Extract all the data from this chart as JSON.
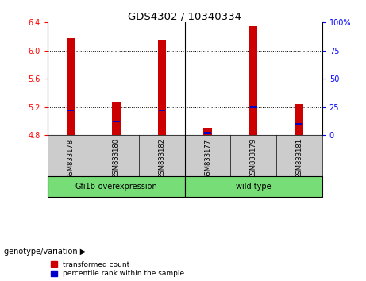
{
  "title": "GDS4302 / 10340334",
  "samples": [
    "GSM833178",
    "GSM833180",
    "GSM833182",
    "GSM833177",
    "GSM833179",
    "GSM833181"
  ],
  "red_values": [
    6.18,
    5.28,
    6.15,
    4.9,
    6.35,
    5.24
  ],
  "blue_values_pct": [
    22,
    12,
    22,
    2,
    25,
    10
  ],
  "y_min": 4.8,
  "y_max": 6.4,
  "y_ticks": [
    4.8,
    5.2,
    5.6,
    6.0,
    6.4
  ],
  "right_y_ticks": [
    0,
    25,
    50,
    75,
    100
  ],
  "right_y_tick_labels": [
    "0",
    "25",
    "50",
    "75",
    "100%"
  ],
  "dotted_lines": [
    5.2,
    5.6,
    6.0
  ],
  "group1_label": "Gfi1b-overexpression",
  "group2_label": "wild type",
  "group_color": "#77DD77",
  "sample_bg_color": "#cccccc",
  "bar_width": 0.18,
  "red_color": "#cc0000",
  "blue_color": "#0000cc",
  "legend_red_label": "transformed count",
  "legend_blue_label": "percentile rank within the sample",
  "genotype_label": "genotype/variation",
  "group1_indices": [
    0,
    1,
    2
  ],
  "group2_indices": [
    3,
    4,
    5
  ]
}
